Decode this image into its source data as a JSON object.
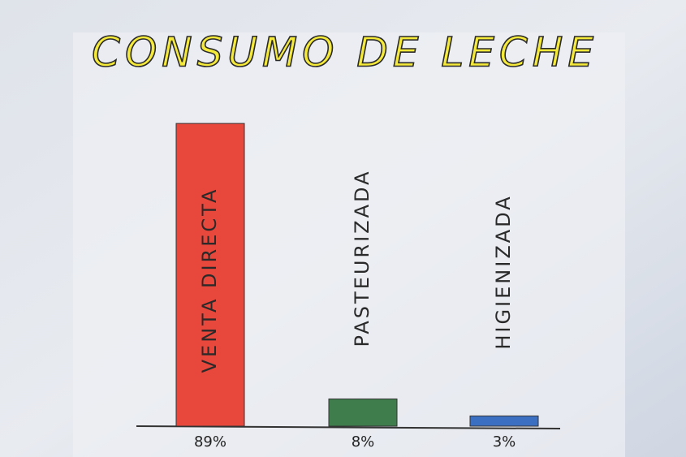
{
  "chart_data": {
    "type": "bar",
    "title": "CONSUMO DE LECHE",
    "categories": [
      "VENTA DIRECTA",
      "PASTEURIZADA",
      "HIGIENIZADA"
    ],
    "values": [
      89,
      8,
      3
    ],
    "value_labels": [
      "89%",
      "8%",
      "3%"
    ],
    "colors": [
      "#e8473c",
      "#3f7d4c",
      "#3b6fc2"
    ]
  }
}
